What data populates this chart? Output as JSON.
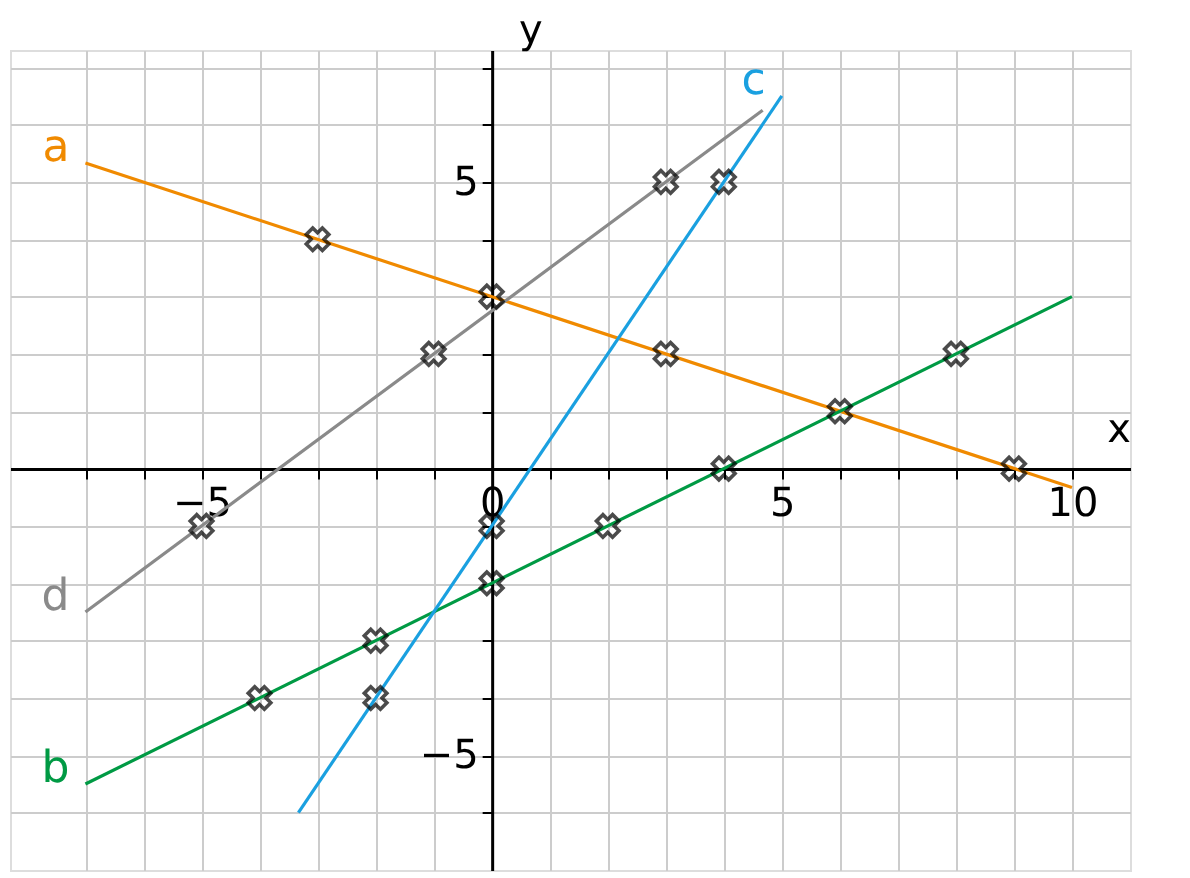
{
  "chart_data": {
    "type": "line",
    "xlabel": "x",
    "ylabel": "y",
    "xlim": [
      -8.3,
      11
    ],
    "ylim": [
      -7,
      7.3
    ],
    "xticks": [
      {
        "value": -7,
        "label": null
      },
      {
        "value": -6,
        "label": null
      },
      {
        "value": -5,
        "label": "−5"
      },
      {
        "value": -4,
        "label": null
      },
      {
        "value": -3,
        "label": null
      },
      {
        "value": -2,
        "label": null
      },
      {
        "value": -1,
        "label": null
      },
      {
        "value": 0,
        "label": "0"
      },
      {
        "value": 1,
        "label": null
      },
      {
        "value": 2,
        "label": null
      },
      {
        "value": 3,
        "label": null
      },
      {
        "value": 4,
        "label": null
      },
      {
        "value": 5,
        "label": "5"
      },
      {
        "value": 6,
        "label": null
      },
      {
        "value": 7,
        "label": null
      },
      {
        "value": 8,
        "label": null
      },
      {
        "value": 9,
        "label": null
      },
      {
        "value": 10,
        "label": "10"
      }
    ],
    "yticks": [
      {
        "value": -6,
        "label": null
      },
      {
        "value": -5,
        "label": "−5"
      },
      {
        "value": -4,
        "label": null
      },
      {
        "value": -3,
        "label": null
      },
      {
        "value": -2,
        "label": null
      },
      {
        "value": -1,
        "label": null
      },
      {
        "value": 0,
        "label": null
      },
      {
        "value": 1,
        "label": null
      },
      {
        "value": 2,
        "label": null
      },
      {
        "value": 3,
        "label": null
      },
      {
        "value": 4,
        "label": null
      },
      {
        "value": 5,
        "label": "5"
      },
      {
        "value": 6,
        "label": null
      },
      {
        "value": 7,
        "label": null
      }
    ],
    "grid": true,
    "series": [
      {
        "name": "a",
        "color": "#f08a00",
        "x": [
          -7,
          10
        ],
        "values": [
          5.33,
          -0.33
        ]
      },
      {
        "name": "b",
        "color": "#009a44",
        "x": [
          -7,
          10
        ],
        "values": [
          -5.5,
          3
        ]
      },
      {
        "name": "c",
        "color": "#1aa0e0",
        "x": [
          5,
          -3.33
        ],
        "values": [
          6.5,
          -6
        ]
      },
      {
        "name": "d",
        "color": "#8a8a8a",
        "x": [
          -7,
          4.67
        ],
        "values": [
          -2.5,
          6.25
        ]
      },
      {
        "type": "scatter",
        "marker": "cross",
        "color": "#000000",
        "x": [
          -3,
          0,
          3,
          6,
          9,
          -4,
          -2,
          0,
          2,
          4,
          8,
          -2,
          0,
          4,
          -5,
          -1,
          3
        ],
        "values": [
          4,
          3,
          2,
          1,
          0,
          -4,
          -3,
          -2,
          -1,
          0,
          2,
          -4,
          -1,
          5,
          -1,
          2,
          5
        ]
      }
    ]
  }
}
